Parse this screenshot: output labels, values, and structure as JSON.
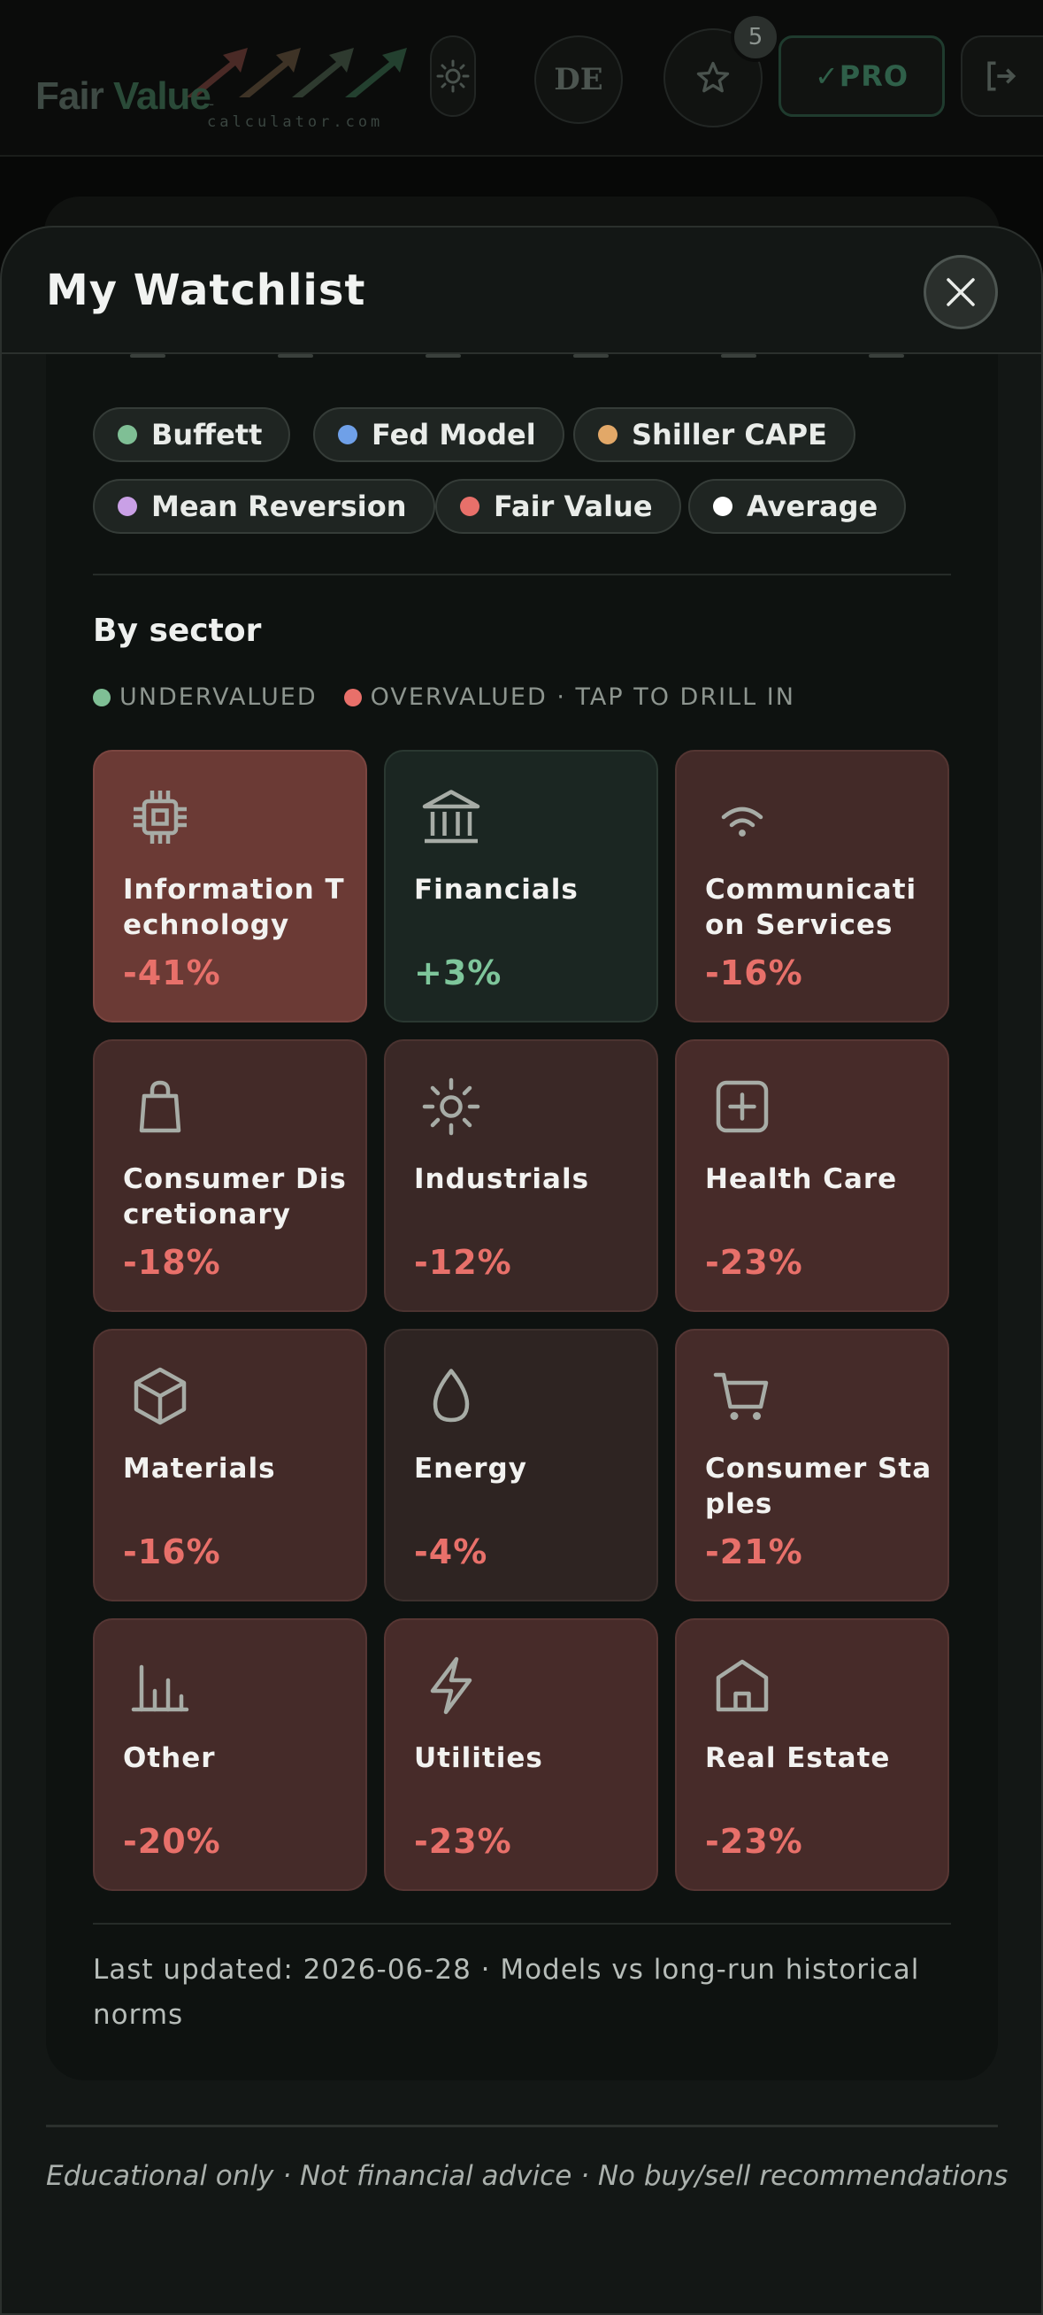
{
  "header": {
    "logo_fair": "Fair",
    "logo_value": "Value",
    "logo_sub": "-calculator.com",
    "lang_label": "DE",
    "watchlist_count": "5",
    "pro_label": "✓PRO"
  },
  "modal": {
    "title": "My Watchlist",
    "legend": [
      {
        "label": "Buffett",
        "color": "#7fbf95"
      },
      {
        "label": "Fed Model",
        "color": "#6fa0e8"
      },
      {
        "label": "Shiller CAPE",
        "color": "#e2a868"
      },
      {
        "label": "Mean Reversion",
        "color": "#c9a0e6"
      },
      {
        "label": "Fair Value",
        "color": "#e8706a"
      },
      {
        "label": "Average",
        "color": "#ffffff"
      }
    ],
    "sector_title": "By sector",
    "undervalued_label": "UNDERVALUED",
    "overvalued_label": "OVERVALUED · TAP TO DRILL IN",
    "sectors": [
      {
        "name": "Information Technology",
        "change": "-41%",
        "icon": "chip-icon"
      },
      {
        "name": "Financials",
        "change": "+3%",
        "icon": "bank-icon"
      },
      {
        "name": "Communication Services",
        "change": "-16%",
        "icon": "wifi-icon"
      },
      {
        "name": "Consumer Discretionary",
        "change": "-18%",
        "icon": "shopping-bag-icon"
      },
      {
        "name": "Industrials",
        "change": "-12%",
        "icon": "sun-icon"
      },
      {
        "name": "Health Care",
        "change": "-23%",
        "icon": "health-plus-icon"
      },
      {
        "name": "Materials",
        "change": "-16%",
        "icon": "box-icon"
      },
      {
        "name": "Energy",
        "change": "-4%",
        "icon": "drop-icon"
      },
      {
        "name": "Consumer Staples",
        "change": "-21%",
        "icon": "cart-icon"
      },
      {
        "name": "Other",
        "change": "-20%",
        "icon": "bar-chart-icon"
      },
      {
        "name": "Utilities",
        "change": "-23%",
        "icon": "bolt-icon"
      },
      {
        "name": "Real Estate",
        "change": "-23%",
        "icon": "house-icon"
      }
    ],
    "last_updated": "Last updated: 2026-06-28 · Models vs long-run historical norms"
  },
  "footer": {
    "disclaimer": "Educational only · Not financial advice · No buy/sell recommendations"
  },
  "colors": {
    "undervalued": "#7fbf95",
    "overvalued": "#e8706a"
  }
}
